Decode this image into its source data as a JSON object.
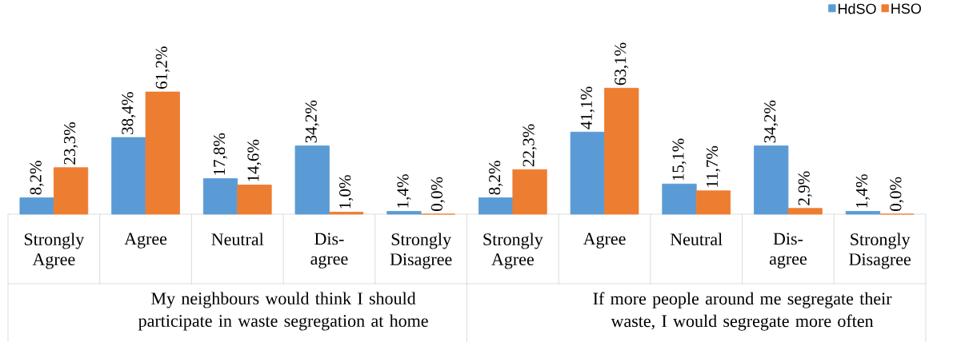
{
  "chart_data": {
    "type": "bar",
    "categories": [
      "Strongly Agree",
      "Agree",
      "Neutral",
      "Dis- agree",
      "Strongly Disagree",
      "Strongly Agree",
      "Agree",
      "Neutral",
      "Dis- agree",
      "Strongly Disagree"
    ],
    "series": [
      {
        "name": "HdSO",
        "color": "#5b9bd5",
        "values": [
          8.2,
          38.4,
          17.8,
          34.2,
          1.4,
          8.2,
          41.1,
          15.1,
          34.2,
          1.4
        ],
        "value_labels": [
          "8,2%",
          "38,4%",
          "17,8%",
          "34,2%",
          "1,4%",
          "8,2%",
          "41,1%",
          "15,1%",
          "34,2%",
          "1,4%"
        ]
      },
      {
        "name": "HSO",
        "color": "#ed7d31",
        "values": [
          23.3,
          61.2,
          14.6,
          1.0,
          0.0,
          22.3,
          63.1,
          11.7,
          2.9,
          0.0
        ],
        "value_labels": [
          "23,3%",
          "61,2%",
          "14,6%",
          "1,0%",
          "0,0%",
          "22,3%",
          "63,1%",
          "11,7%",
          "2,9%",
          "0,0%"
        ]
      }
    ],
    "annotations": [
      "My neighbours would think I should participate in waste segregation at home",
      "If more people around me segregate their waste, I would segregate more often"
    ],
    "legend": "top right",
    "grid": false
  }
}
